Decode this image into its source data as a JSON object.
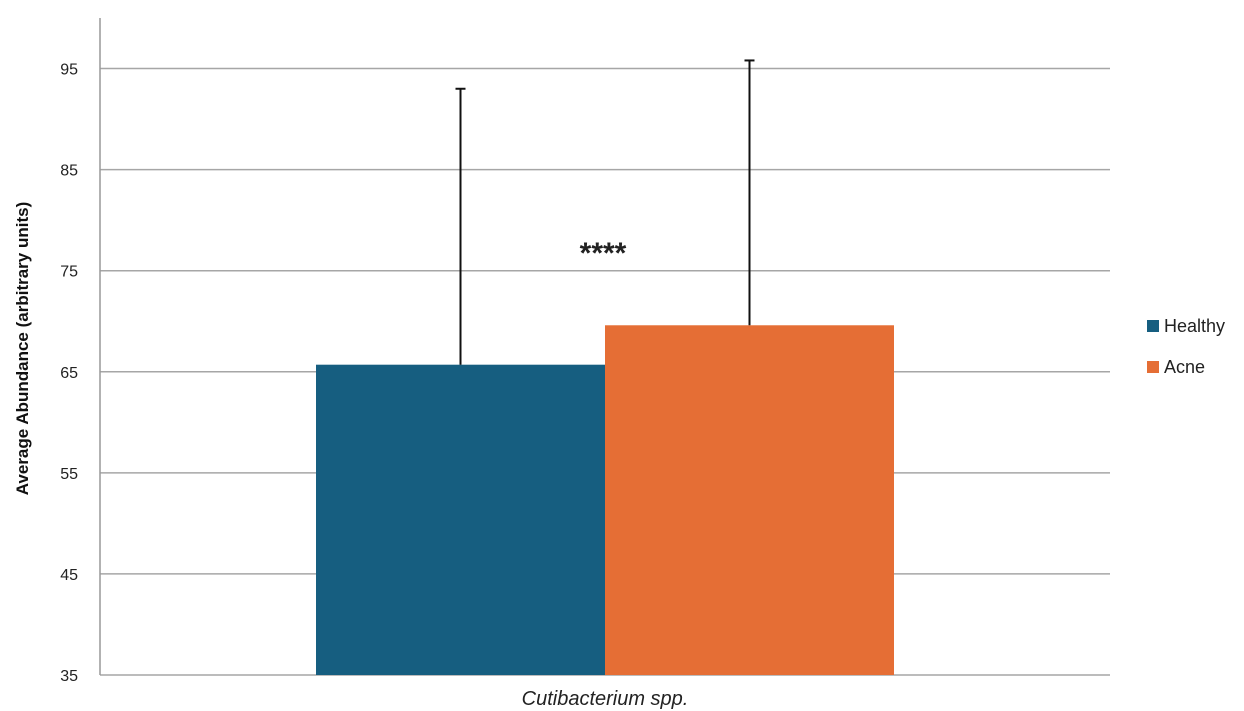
{
  "chart_data": {
    "type": "bar",
    "title": "",
    "xlabel": "",
    "ylabel": "Average Abundance (arbitrary units)",
    "categories": [
      "Cutibacterium spp."
    ],
    "series": [
      {
        "name": "Healthy",
        "values": [
          65.7
        ],
        "error_upper": [
          93.0
        ],
        "color": "#165e80"
      },
      {
        "name": "Acne",
        "values": [
          69.6
        ],
        "error_upper": [
          95.8
        ],
        "color": "#e56e35"
      }
    ],
    "ylim": [
      35,
      100
    ],
    "yticks": [
      35,
      45,
      55,
      65,
      75,
      85,
      95
    ],
    "grid": true,
    "legend": "right",
    "annotation": "****"
  }
}
